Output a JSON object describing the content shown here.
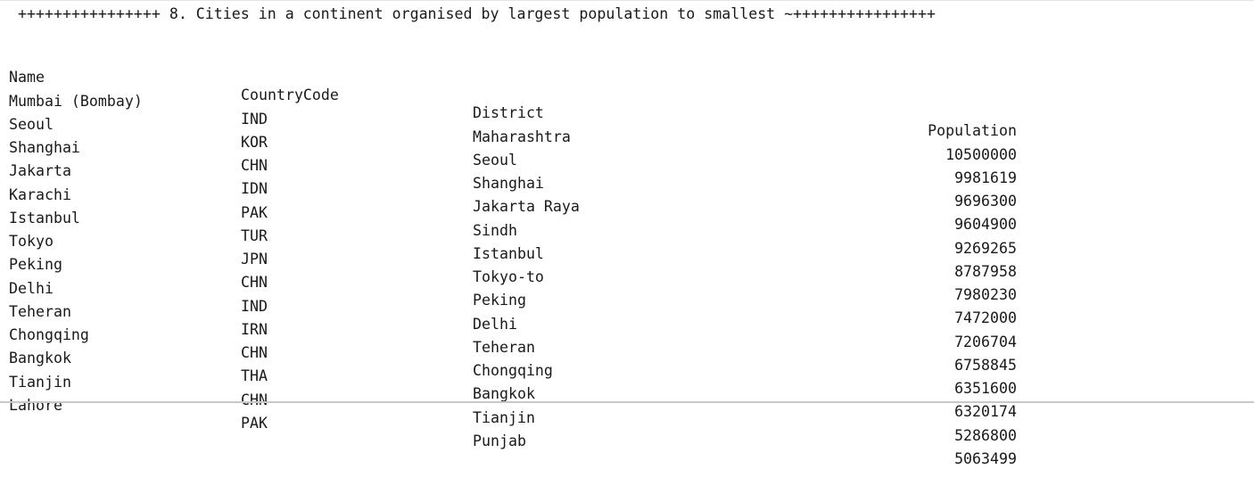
{
  "console": {
    "title": "++++++++++++++++ 8. Cities in a continent organised by largest population to smallest ~++++++++++++++++",
    "headers": {
      "name": "Name",
      "country_code": "CountryCode",
      "district": "District",
      "population": "Population"
    },
    "rows": [
      {
        "name": "Mumbai (Bombay)",
        "country_code": "IND",
        "district": "Maharashtra",
        "population": "10500000"
      },
      {
        "name": "Seoul",
        "country_code": "KOR",
        "district": "Seoul",
        "population": "9981619"
      },
      {
        "name": "Shanghai",
        "country_code": "CHN",
        "district": "Shanghai",
        "population": "9696300"
      },
      {
        "name": "Jakarta",
        "country_code": "IDN",
        "district": "Jakarta Raya",
        "population": "9604900"
      },
      {
        "name": "Karachi",
        "country_code": "PAK",
        "district": "Sindh",
        "population": "9269265"
      },
      {
        "name": "Istanbul",
        "country_code": "TUR",
        "district": "Istanbul",
        "population": "8787958"
      },
      {
        "name": "Tokyo",
        "country_code": "JPN",
        "district": "Tokyo-to",
        "population": "7980230"
      },
      {
        "name": "Peking",
        "country_code": "CHN",
        "district": "Peking",
        "population": "7472000"
      },
      {
        "name": "Delhi",
        "country_code": "IND",
        "district": "Delhi",
        "population": "7206704"
      },
      {
        "name": "Teheran",
        "country_code": "IRN",
        "district": "Teheran",
        "population": "6758845"
      },
      {
        "name": "Chongqing",
        "country_code": "CHN",
        "district": "Chongqing",
        "population": "6351600"
      },
      {
        "name": "Bangkok",
        "country_code": "THA",
        "district": "Bangkok",
        "population": "6320174"
      },
      {
        "name": "Tianjin",
        "country_code": "CHN",
        "district": "Tianjin",
        "population": "5286800"
      },
      {
        "name": "Lahore",
        "country_code": "PAK",
        "district": "Punjab",
        "population": "5063499"
      }
    ]
  }
}
